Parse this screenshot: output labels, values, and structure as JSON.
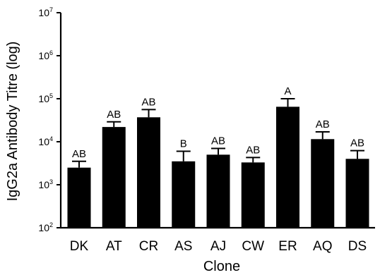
{
  "chart_data": {
    "type": "bar",
    "title": "",
    "xlabel": "Clone",
    "ylabel": "IgG2a Antibody Titre (log)",
    "y_scale": "log",
    "ylim": [
      100,
      10000000
    ],
    "y_ticks": [
      {
        "base": "10",
        "exp": "2",
        "value": 100
      },
      {
        "base": "10",
        "exp": "3",
        "value": 1000
      },
      {
        "base": "10",
        "exp": "4",
        "value": 10000
      },
      {
        "base": "10",
        "exp": "5",
        "value": 100000
      },
      {
        "base": "10",
        "exp": "6",
        "value": 1000000
      },
      {
        "base": "10",
        "exp": "7",
        "value": 10000000
      }
    ],
    "categories": [
      "DK",
      "AT",
      "CR",
      "AS",
      "AJ",
      "CW",
      "ER",
      "AQ",
      "DS"
    ],
    "values": [
      2500,
      22000,
      37000,
      3500,
      5000,
      3300,
      65000,
      11500,
      4000
    ],
    "error_upper": [
      3500,
      29000,
      56000,
      6000,
      7000,
      4300,
      100000,
      17000,
      6200
    ],
    "significance_labels": [
      "AB",
      "AB",
      "AB",
      "B",
      "AB",
      "AB",
      "A",
      "AB",
      "AB"
    ],
    "bar_color": "#000000",
    "grid": false,
    "legend": "none"
  }
}
